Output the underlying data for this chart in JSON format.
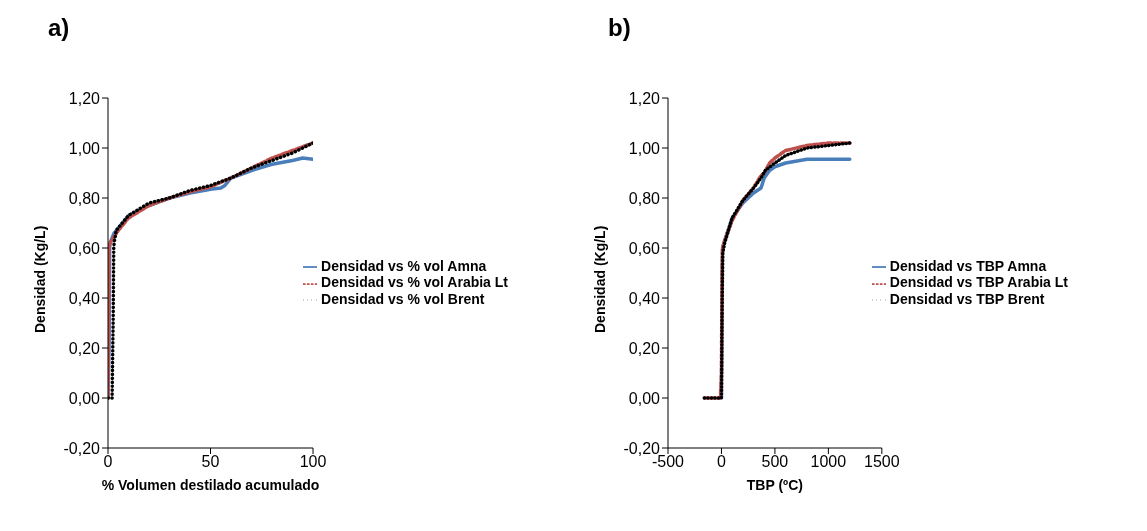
{
  "chart_data": [
    {
      "type": "line",
      "title": "a)",
      "xlabel": "% Volumen destilado acumulado",
      "ylabel": "Densidad (Kg/L)",
      "xlim": [
        0,
        100
      ],
      "xticks": [
        0,
        50,
        100
      ],
      "ylim": [
        -0.2,
        1.2
      ],
      "yticks": [
        {
          "value": -0.2,
          "label": "-0,20"
        },
        {
          "value": 0,
          "label": "0,00"
        },
        {
          "value": 0.2,
          "label": "0,20"
        },
        {
          "value": 0.4,
          "label": "0,40"
        },
        {
          "value": 0.6,
          "label": "0,60"
        },
        {
          "value": 0.8,
          "label": "0,80"
        },
        {
          "value": 1,
          "label": "1,00"
        },
        {
          "value": 1.2,
          "label": "1,20"
        }
      ],
      "legend": "right",
      "marker": "none",
      "series": [
        {
          "name": "Densidad vs % vol Amna",
          "color": "#4a7ebb",
          "line_style": "solid",
          "x": [
            0,
            0.5,
            0.8,
            1,
            3,
            10,
            20,
            30,
            40,
            50,
            55,
            57,
            60,
            70,
            80,
            90,
            95,
            100
          ],
          "values": [
            0,
            0.2,
            0.6,
            0.62,
            0.66,
            0.73,
            0.77,
            0.8,
            0.82,
            0.835,
            0.84,
            0.85,
            0.88,
            0.91,
            0.935,
            0.95,
            0.96,
            0.955
          ]
        },
        {
          "name": "Densidad vs % vol Arabia Lt",
          "color": "#c0504d",
          "line_style": "dashed",
          "x": [
            0,
            0.3,
            0.5,
            1,
            5,
            10,
            20,
            30,
            40,
            50,
            60,
            70,
            80,
            90,
            100
          ],
          "values": [
            0,
            0.3,
            0.6,
            0.62,
            0.67,
            0.72,
            0.77,
            0.8,
            0.825,
            0.845,
            0.88,
            0.92,
            0.96,
            0.99,
            1.02
          ]
        },
        {
          "name": "Densidad vs % vol Brent",
          "color": "#000000",
          "line_style": "dotted",
          "x": [
            0,
            2,
            2.5,
            2.8,
            3,
            4,
            10,
            20,
            30,
            40,
            50,
            60,
            70,
            80,
            90,
            100
          ],
          "values": [
            0,
            0,
            0.3,
            0.6,
            0.62,
            0.67,
            0.73,
            0.78,
            0.8,
            0.83,
            0.85,
            0.88,
            0.92,
            0.95,
            0.98,
            1.02
          ]
        }
      ]
    },
    {
      "type": "line",
      "title": "b)",
      "xlabel": "TBP (ºC)",
      "ylabel": "Densidad (Kg/L)",
      "xlim": [
        -500,
        1500
      ],
      "xticks": [
        -500,
        0,
        500,
        1000,
        1500
      ],
      "ylim": [
        -0.2,
        1.2
      ],
      "yticks": [
        {
          "value": -0.2,
          "label": "-0,20"
        },
        {
          "value": 0,
          "label": "0,00"
        },
        {
          "value": 0.2,
          "label": "0,20"
        },
        {
          "value": 0.4,
          "label": "0,40"
        },
        {
          "value": 0.6,
          "label": "0,60"
        },
        {
          "value": 0.8,
          "label": "0,80"
        },
        {
          "value": 1,
          "label": "1,00"
        },
        {
          "value": 1.2,
          "label": "1,20"
        }
      ],
      "legend": "right",
      "marker": "none",
      "series": [
        {
          "name": "Densidad vs TBP Amna",
          "color": "#4a7ebb",
          "line_style": "solid",
          "x": [
            -20,
            0,
            5,
            10,
            30,
            100,
            200,
            300,
            370,
            400,
            450,
            500,
            600,
            800,
            1000,
            1200
          ],
          "values": [
            0,
            0,
            0.3,
            0.6,
            0.63,
            0.72,
            0.78,
            0.82,
            0.84,
            0.88,
            0.91,
            0.925,
            0.94,
            0.955,
            0.955,
            0.955
          ]
        },
        {
          "name": "Densidad vs TBP Arabia Lt",
          "color": "#c0504d",
          "line_style": "dashed",
          "x": [
            -160,
            -10,
            0,
            5,
            10,
            30,
            100,
            200,
            300,
            370,
            400,
            450,
            500,
            600,
            800,
            1000,
            1200
          ],
          "values": [
            0,
            0,
            0.1,
            0.5,
            0.6,
            0.63,
            0.71,
            0.79,
            0.84,
            0.89,
            0.9,
            0.94,
            0.96,
            0.99,
            1.01,
            1.02,
            1.02
          ]
        },
        {
          "name": "Densidad vs TBP Brent",
          "color": "#000000",
          "line_style": "dotted",
          "x": [
            -160,
            0,
            5,
            12,
            30,
            100,
            200,
            300,
            370,
            410,
            500,
            600,
            800,
            1000,
            1200
          ],
          "values": [
            0,
            0,
            0.3,
            0.58,
            0.62,
            0.72,
            0.79,
            0.84,
            0.88,
            0.91,
            0.94,
            0.97,
            1.0,
            1.01,
            1.02
          ]
        }
      ]
    }
  ]
}
